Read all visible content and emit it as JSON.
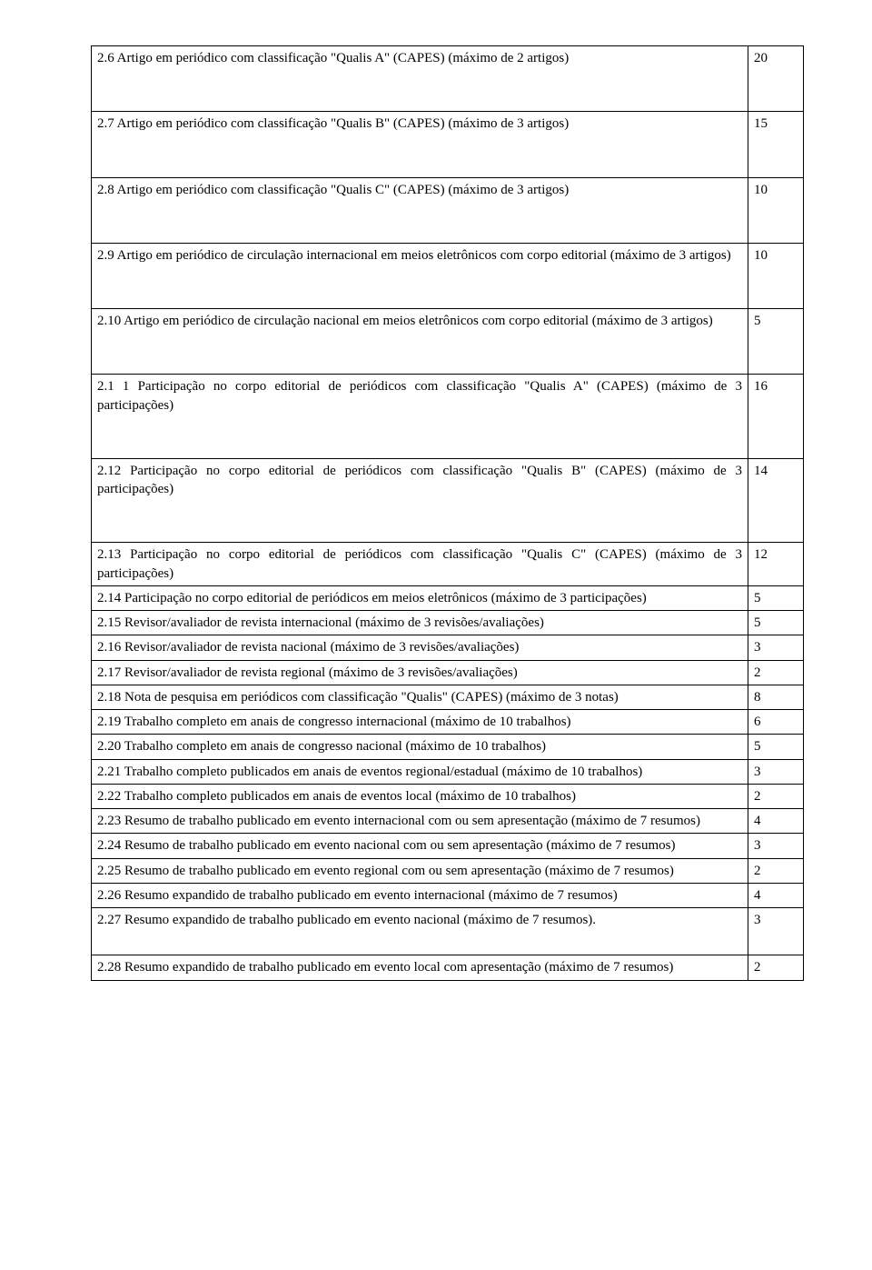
{
  "rows": [
    {
      "desc": "2.6 Artigo em periódico com classificação \"Qualis A\" (CAPES) (máximo de 2 artigos)",
      "val": "20",
      "cls": "tall"
    },
    {
      "desc": "2.7 Artigo em periódico com classificação \"Qualis B\" (CAPES) (máximo de 3 artigos)",
      "val": "15",
      "cls": "tall"
    },
    {
      "desc": "2.8 Artigo em periódico com classificação \"Qualis C\" (CAPES) (máximo de 3 artigos)",
      "val": "10",
      "cls": "tall"
    },
    {
      "desc": "2.9 Artigo em periódico de circulação internacional em meios eletrônicos com corpo editorial (máximo de 3 artigos)",
      "val": "10",
      "cls": "tall"
    },
    {
      "desc": "2.10 Artigo em periódico de circulação nacional em meios eletrônicos com corpo editorial (máximo de 3 artigos)",
      "val": "5",
      "cls": "tall"
    },
    {
      "desc": "2.1 1 Participação no corpo editorial de periódicos com classificação \"Qualis A\" (CAPES) (máximo de 3 participações)",
      "val": "16",
      "cls": "tall"
    },
    {
      "desc": "2.12 Participação no corpo editorial de periódicos com classificação \"Qualis B\" (CAPES) (máximo de 3 participações)",
      "val": "14",
      "cls": "tall"
    },
    {
      "desc": "2.13 Participação no corpo editorial de periódicos com classificação \"Qualis C\" (CAPES) (máximo de 3 participações)",
      "val": "12",
      "cls": ""
    },
    {
      "desc": "2.14 Participação no corpo editorial de periódicos em meios eletrônicos (máximo de 3 participações)",
      "val": "5",
      "cls": ""
    },
    {
      "desc": "2.15 Revisor/avaliador de revista internacional (máximo de 3 revisões/avaliações)",
      "val": "5",
      "cls": ""
    },
    {
      "desc": "2.16 Revisor/avaliador de revista nacional (máximo de 3 revisões/avaliações)",
      "val": "3",
      "cls": ""
    },
    {
      "desc": "2.17 Revisor/avaliador de revista regional (máximo de 3 revisões/avaliações)",
      "val": "2",
      "cls": ""
    },
    {
      "desc": "2.18 Nota de pesquisa em periódicos com classificação \"Qualis\" (CAPES) (máximo de 3 notas)",
      "val": "8",
      "cls": ""
    },
    {
      "desc": "2.19 Trabalho completo em anais de congresso internacional (máximo de 10 trabalhos)",
      "val": "6",
      "cls": ""
    },
    {
      "desc": "2.20 Trabalho completo em anais de congresso nacional (máximo de 10 trabalhos)",
      "val": "5",
      "cls": ""
    },
    {
      "desc": "2.21 Trabalho completo publicados em anais de eventos regional/estadual (máximo de 10 trabalhos)",
      "val": "3",
      "cls": ""
    },
    {
      "desc": "2.22 Trabalho completo publicados em anais de eventos local (máximo de 10 trabalhos)",
      "val": "2",
      "cls": ""
    },
    {
      "desc": "2.23 Resumo de trabalho publicado em evento internacional com ou sem apresentação (máximo de 7 resumos)",
      "val": "4",
      "cls": ""
    },
    {
      "desc": "2.24 Resumo de trabalho publicado em evento nacional com ou sem apresentação (máximo de 7 resumos)",
      "val": "3",
      "cls": ""
    },
    {
      "desc": "2.25 Resumo de trabalho publicado em evento regional com ou sem apresentação (máximo de 7 resumos)",
      "val": "2",
      "cls": ""
    },
    {
      "desc": "2.26 Resumo expandido de trabalho publicado em evento internacional (máximo de 7 resumos)",
      "val": "4",
      "cls": ""
    },
    {
      "desc": "2.27 Resumo expandido de trabalho publicado em evento nacional (máximo de 7 resumos).",
      "val": "3",
      "cls": "med"
    },
    {
      "desc": "2.28 Resumo expandido de trabalho publicado em evento local com apresentação (máximo de 7 resumos)",
      "val": "2",
      "cls": ""
    }
  ]
}
